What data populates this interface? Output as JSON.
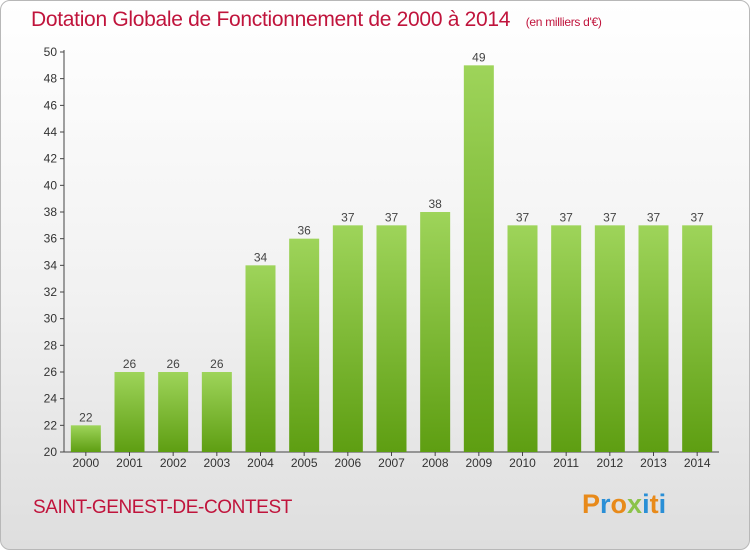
{
  "title": "Dotation Globale de Fonctionnement de 2000 à 2014",
  "subtitle": "(en milliers d'€)",
  "commune": "SAINT-GENEST-DE-CONTEST",
  "logo": {
    "text": "Proxiti",
    "letters": [
      {
        "ch": "P",
        "color": "#e88a1a"
      },
      {
        "ch": "r",
        "color": "#2a8fd6"
      },
      {
        "ch": "o",
        "color": "#e88a1a"
      },
      {
        "ch": "x",
        "color": "#8bc34a"
      },
      {
        "ch": "i",
        "color": "#2a8fd6"
      },
      {
        "ch": "t",
        "color": "#e88a1a"
      },
      {
        "ch": "i",
        "color": "#2a8fd6"
      }
    ]
  },
  "colors": {
    "accent": "#c0143c",
    "bar_top": "#9ed45a",
    "bar_bottom": "#5e9e12"
  },
  "chart_data": {
    "type": "bar",
    "categories": [
      "2000",
      "2001",
      "2002",
      "2003",
      "2004",
      "2005",
      "2006",
      "2007",
      "2008",
      "2009",
      "2010",
      "2011",
      "2012",
      "2013",
      "2014"
    ],
    "values": [
      22,
      26,
      26,
      26,
      34,
      36,
      37,
      37,
      38,
      49,
      37,
      37,
      37,
      37,
      37
    ],
    "ylim": [
      20,
      50
    ],
    "yticks": [
      20,
      22,
      24,
      26,
      28,
      30,
      32,
      34,
      36,
      38,
      40,
      42,
      44,
      46,
      48,
      50
    ],
    "grid": false,
    "data_labels": true
  }
}
